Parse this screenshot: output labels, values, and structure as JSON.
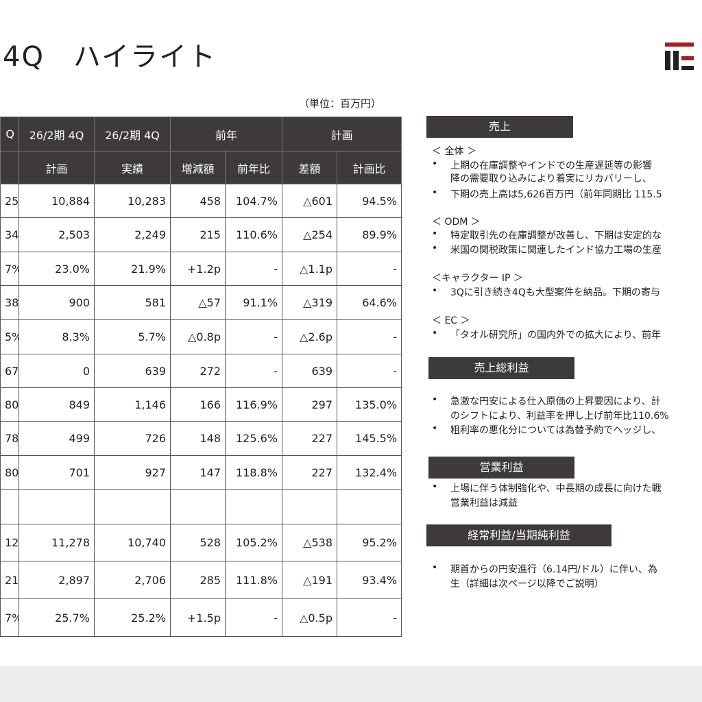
{
  "header": {
    "title": "4Q　ハイライト",
    "unit": "（単位：百万円）"
  },
  "table": {
    "header_rows": [
      [
        "Q",
        "26/2期 4Q",
        "26/2期 4Q",
        "前年",
        "計画"
      ],
      [
        "計画",
        "実績",
        "増減額",
        "前年比",
        "差額",
        "計画比"
      ]
    ],
    "rows": [
      [
        "25",
        "10,884",
        "10,283",
        "458",
        "104.7%",
        "△601",
        "94.5%"
      ],
      [
        "34",
        "2,503",
        "2,249",
        "215",
        "110.6%",
        "△254",
        "89.9%"
      ],
      [
        "7%",
        "23.0%",
        "21.9%",
        "+1.2p",
        "-",
        "△1.1p",
        "-"
      ],
      [
        "38",
        "900",
        "581",
        "△57",
        "91.1%",
        "△319",
        "64.6%"
      ],
      [
        "5%",
        "8.3%",
        "5.7%",
        "△0.8p",
        "-",
        "△2.6p",
        "-"
      ],
      [
        "67",
        "0",
        "639",
        "272",
        "-",
        "639",
        "-"
      ],
      [
        "80",
        "849",
        "1,146",
        "166",
        "116.9%",
        "297",
        "135.0%"
      ],
      [
        "78",
        "499",
        "726",
        "148",
        "125.6%",
        "227",
        "145.5%"
      ],
      [
        "80",
        "701",
        "927",
        "147",
        "118.8%",
        "227",
        "132.4%"
      ],
      [],
      [
        "12",
        "11,278",
        "10,740",
        "528",
        "105.2%",
        "△538",
        "95.2%"
      ],
      [
        "21",
        "2,897",
        "2,706",
        "285",
        "111.8%",
        "△191",
        "93.4%"
      ],
      [
        "7%",
        "25.7%",
        "25.2%",
        "+1.5p",
        "-",
        "△0.5p",
        "-"
      ]
    ]
  },
  "panel": {
    "sections": [
      {
        "heading": "売上",
        "lines": [
          {
            "kind": "head",
            "text": "＜ 全体 ＞"
          },
          {
            "kind": "bullet",
            "text": "上期の在庫調整やインドでの生産遅延等の影響"
          },
          {
            "kind": "cont",
            "text": "降の需要取り込みにより着実にリカバリーし、"
          },
          {
            "kind": "bullet",
            "text": "下期の売上高は5,626百万円（前年同期比 115.5"
          },
          {
            "kind": "head",
            "text": "＜ ODM ＞"
          },
          {
            "kind": "bullet",
            "text": "特定取引先の在庫調整が改善し、下期は安定的な"
          },
          {
            "kind": "bullet",
            "text": "米国の関税政策に関連したインド協力工場の生産"
          },
          {
            "kind": "head",
            "text": "＜キャラクター IP ＞"
          },
          {
            "kind": "bullet",
            "text": "3Qに引き続き4Qも大型案件を納品。下期の寄与"
          },
          {
            "kind": "head",
            "text": "＜ EC ＞"
          },
          {
            "kind": "bullet",
            "text": "「タオル研究所」の国内外での拡大により、前年"
          }
        ]
      },
      {
        "heading": "売上総利益",
        "lines": [
          {
            "kind": "bullet",
            "text": "急激な円安による仕入原価の上昇要因により、計"
          },
          {
            "kind": "cont",
            "text": "のシフトにより、利益率を押し上げ前年比110.6%"
          },
          {
            "kind": "bullet",
            "text": "粗利率の悪化分については為替予約でヘッジし、"
          }
        ]
      },
      {
        "heading": "営業利益",
        "lines": [
          {
            "kind": "bullet",
            "text": "上場に伴う体制強化や、中長期の成長に向けた戦"
          },
          {
            "kind": "cont",
            "text": "営業利益は減益"
          }
        ]
      },
      {
        "heading": "経常利益/当期純利益",
        "lines": [
          {
            "kind": "bullet",
            "text": "期首からの円安進行（6.14円/ドル）に伴い、為"
          },
          {
            "kind": "cont",
            "text": "生（詳細は次ページ以降でご説明）"
          }
        ]
      }
    ]
  }
}
